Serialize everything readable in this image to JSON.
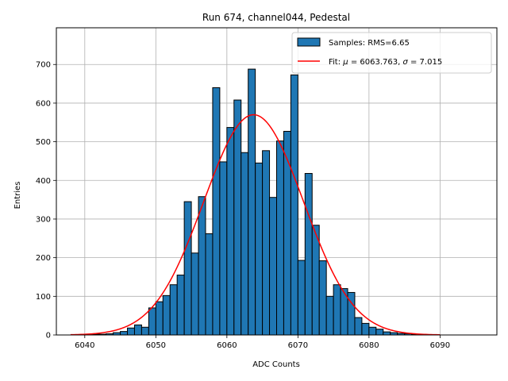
{
  "chart_data": {
    "type": "bar",
    "title": "Run 674, channel044, Pedestal",
    "xlabel": "ADC Counts",
    "ylabel": "Entries",
    "xlim": [
      6036,
      6098
    ],
    "ylim": [
      0,
      795
    ],
    "xticks": [
      6040,
      6050,
      6060,
      6070,
      6080,
      6090
    ],
    "yticks": [
      0,
      100,
      200,
      300,
      400,
      500,
      600,
      700
    ],
    "grid": true,
    "legend_position": "top-right",
    "bar_color": "#1f77b4",
    "bar_edge_color": "#000000",
    "fit_color": "#ff0000",
    "histogram": {
      "name": "Samples: RMS=6.65",
      "bin_start": 6039,
      "bin_width": 1,
      "values": [
        1,
        1,
        2,
        2,
        3,
        6,
        9,
        18,
        26,
        20,
        70,
        86,
        102,
        130,
        155,
        345,
        212,
        358,
        262,
        640,
        448,
        537,
        608,
        472,
        688,
        445,
        477,
        356,
        502,
        527,
        673,
        193,
        418,
        284,
        192,
        100,
        130,
        120,
        110,
        45,
        30,
        20,
        15,
        8,
        6,
        4,
        3,
        2,
        1,
        1
      ]
    },
    "fit": {
      "name": "Fit: μ = 6063.763, σ = 7.015",
      "label_prefix": "Fit: ",
      "mu_symbol": "μ",
      "mu_text": " = 6063.763, ",
      "sigma_symbol": "σ",
      "sigma_text": " = 7.015",
      "mu": 6063.763,
      "sigma": 7.015,
      "amplitude": 570,
      "x_range": [
        6038,
        6090
      ]
    }
  }
}
